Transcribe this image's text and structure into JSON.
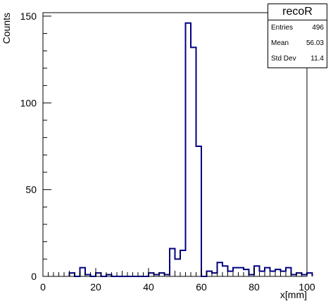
{
  "chart_data": {
    "type": "histogram",
    "title": "recoR",
    "xlabel": "x[mm]",
    "ylabel": "Counts",
    "xlim": [
      0,
      100
    ],
    "ylim": [
      0,
      152
    ],
    "xticks": [
      "0",
      "20",
      "40",
      "60",
      "80",
      "100"
    ],
    "yticks": [
      "0",
      "50",
      "100",
      "150"
    ],
    "bin_width": 2,
    "bins": [
      [
        10,
        2
      ],
      [
        12,
        0
      ],
      [
        14,
        5
      ],
      [
        16,
        1
      ],
      [
        18,
        0
      ],
      [
        20,
        2
      ],
      [
        22,
        0
      ],
      [
        24,
        1
      ],
      [
        26,
        0
      ],
      [
        28,
        0
      ],
      [
        30,
        0
      ],
      [
        32,
        0
      ],
      [
        34,
        0
      ],
      [
        36,
        0
      ],
      [
        38,
        0
      ],
      [
        40,
        2
      ],
      [
        42,
        1
      ],
      [
        44,
        2
      ],
      [
        46,
        1
      ],
      [
        48,
        16
      ],
      [
        50,
        10
      ],
      [
        52,
        15
      ],
      [
        54,
        146
      ],
      [
        56,
        132
      ],
      [
        58,
        75
      ],
      [
        60,
        0
      ],
      [
        62,
        3
      ],
      [
        64,
        2
      ],
      [
        66,
        8
      ],
      [
        68,
        6
      ],
      [
        70,
        3
      ],
      [
        72,
        5
      ],
      [
        74,
        5
      ],
      [
        76,
        4
      ],
      [
        78,
        1
      ],
      [
        80,
        6
      ],
      [
        82,
        3
      ],
      [
        84,
        5
      ],
      [
        86,
        3
      ],
      [
        88,
        4
      ],
      [
        90,
        3
      ],
      [
        92,
        5
      ],
      [
        94,
        1
      ],
      [
        96,
        2
      ],
      [
        98,
        1
      ],
      [
        100,
        2
      ]
    ],
    "line_color": "#00007f",
    "stats": {
      "rows": [
        {
          "label": "Entries",
          "value": "496"
        },
        {
          "label": "Mean",
          "value": "56.03"
        },
        {
          "label": "Std Dev",
          "value": "11.4"
        }
      ]
    }
  }
}
